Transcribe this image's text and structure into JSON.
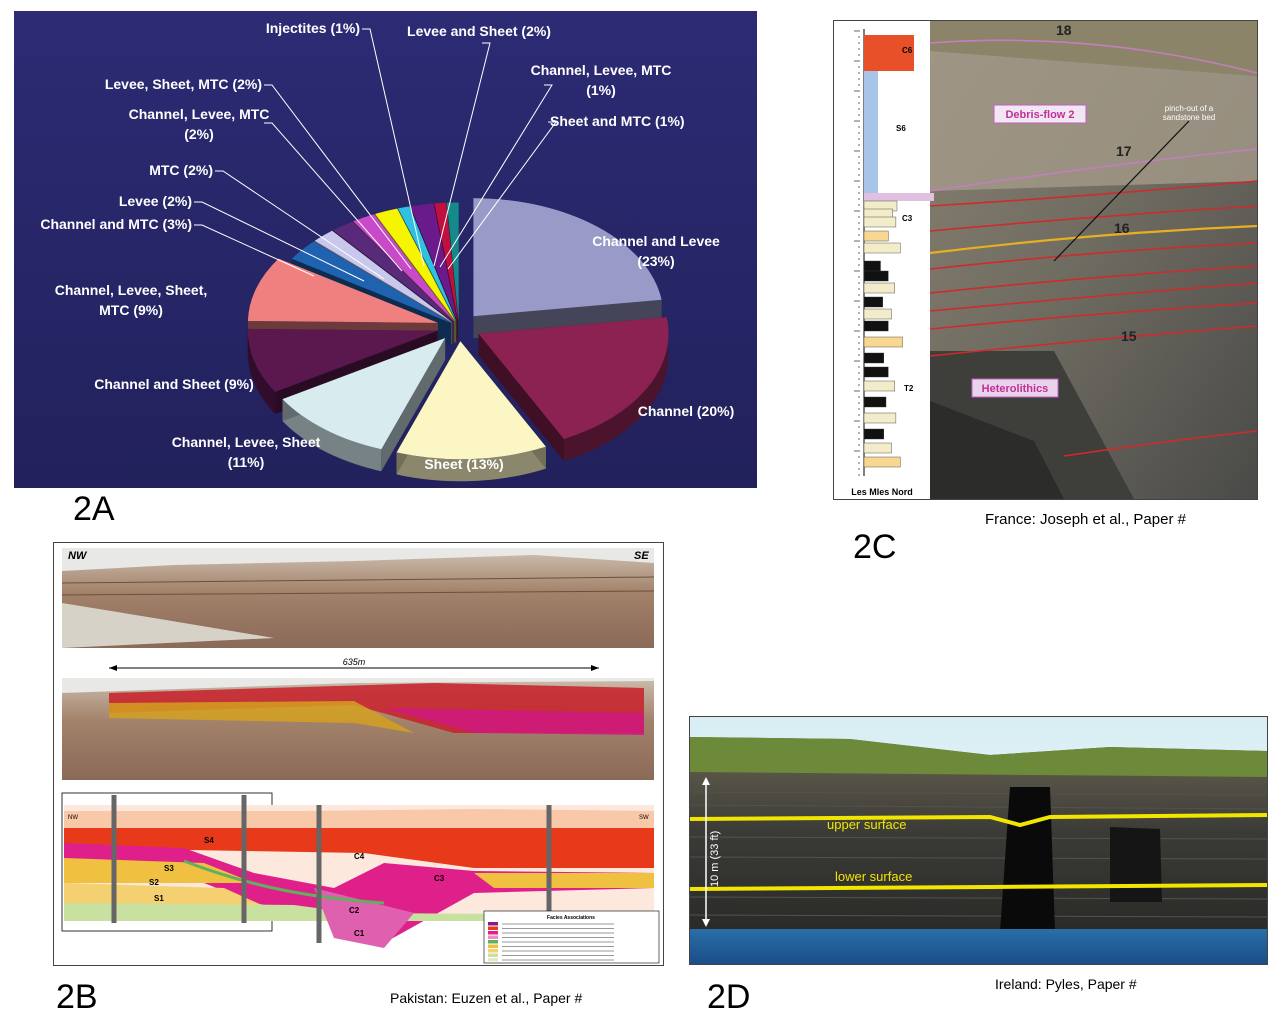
{
  "panels": {
    "a": {
      "label": "2A",
      "chart_data": {
        "type": "pie",
        "title": "",
        "slices": [
          {
            "name": "Channel and Levee",
            "value": 23,
            "color": "#9a9ac8"
          },
          {
            "name": "Channel",
            "value": 20,
            "color": "#8b2252"
          },
          {
            "name": "Sheet",
            "value": 13,
            "color": "#fbf6c4"
          },
          {
            "name": "Channel, Levee, Sheet",
            "value": 11,
            "color": "#d8ecf0"
          },
          {
            "name": "Channel and Sheet",
            "value": 9,
            "color": "#5a184f"
          },
          {
            "name": "Channel, Levee, Sheet, MTC",
            "value": 9,
            "color": "#f08080"
          },
          {
            "name": "Channel and MTC",
            "value": 3,
            "color": "#1f62b0"
          },
          {
            "name": "Levee",
            "value": 2,
            "color": "#c8c8ec"
          },
          {
            "name": "MTC",
            "value": 2,
            "color": "#5a2a7a"
          },
          {
            "name": "Channel, Levee, MTC",
            "value": 2,
            "color": "#c84ac8"
          },
          {
            "name": "Levee, Sheet, MTC",
            "value": 2,
            "color": "#f5f500"
          },
          {
            "name": "Injectites",
            "value": 1,
            "color": "#30c0e0"
          },
          {
            "name": "Levee and Sheet",
            "value": 2,
            "color": "#6a1a8a"
          },
          {
            "name": "Channel, Levee, MTC",
            "value": 1,
            "color": "#c01040"
          },
          {
            "name": "Sheet and MTC",
            "value": 1,
            "color": "#148a8a"
          }
        ],
        "labels": [
          {
            "lines": [
              "Channel and Levee",
              "(23%)"
            ]
          },
          {
            "lines": [
              "Channel (20%)"
            ]
          },
          {
            "lines": [
              "Sheet (13%)"
            ]
          },
          {
            "lines": [
              "Channel, Levee, Sheet",
              "(11%)"
            ]
          },
          {
            "lines": [
              "Channel and Sheet (9%)"
            ]
          },
          {
            "lines": [
              "Channel, Levee, Sheet,",
              "MTC (9%)"
            ]
          },
          {
            "lines": [
              "Channel and MTC (3%)"
            ]
          },
          {
            "lines": [
              "Levee (2%)"
            ]
          },
          {
            "lines": [
              "MTC (2%)"
            ]
          },
          {
            "lines": [
              "Channel, Levee, MTC",
              "(2%)"
            ]
          },
          {
            "lines": [
              "Levee, Sheet, MTC (2%)"
            ]
          },
          {
            "lines": [
              "Injectites (1%)"
            ]
          },
          {
            "lines": [
              "Levee and Sheet (2%)"
            ]
          },
          {
            "lines": [
              "Channel, Levee, MTC",
              "(1%)"
            ]
          },
          {
            "lines": [
              "Sheet and MTC (1%)"
            ]
          }
        ],
        "background": "#2b2a6e"
      }
    },
    "b": {
      "label": "2B",
      "caption": "Pakistan: Euzen et al., Paper #",
      "photo_left": "NW",
      "photo_right": "SE",
      "span_label": "635m",
      "units": [
        "S4",
        "S3",
        "S2",
        "S1",
        "C4",
        "C3",
        "C2",
        "C1"
      ],
      "section_left": "NW",
      "section_right": "SW",
      "legend_title": "Facies Associations"
    },
    "c": {
      "label": "2C",
      "caption": "France: Joseph et al., Paper #",
      "log_footer": "Les Mles Nord",
      "units": [
        "C6",
        "S6",
        "C3",
        "T2"
      ],
      "beds": [
        "18",
        "17",
        "16",
        "15"
      ],
      "tag_debris": "Debris-flow 2",
      "tag_hetero": "Heterolithics",
      "pinch_note": [
        "pinch-out of a",
        "sandstone bed"
      ]
    },
    "d": {
      "label": "2D",
      "caption": "Ireland: Pyles, Paper #",
      "scale_label": "10 m (33 ft)",
      "upper": "upper surface",
      "lower": "lower surface"
    }
  }
}
